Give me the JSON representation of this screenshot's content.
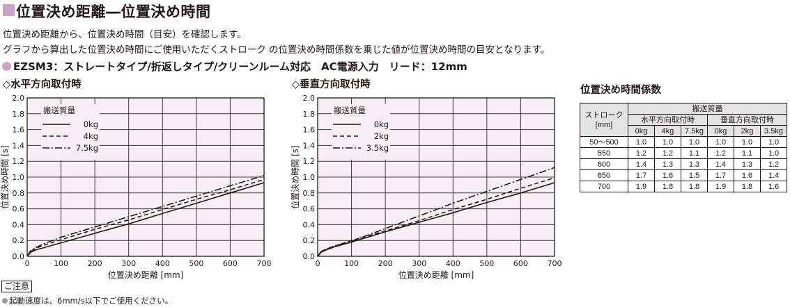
{
  "header": {
    "title": "位置決め距離―位置決め時間",
    "desc1": "位置決め距離から、位置決め時間（目安）を確認します。",
    "desc2": "グラフから算出した位置決め時間にご使用いただくストローク の位置決め時間係数を乗じた値が位置決め時間の目安となります。",
    "model_code": "EZSM3",
    "model_rest": "：ストレートタイプ/折返しタイプ/クリーンルーム対応　AC電源入力　リード：12mm"
  },
  "chart_data": [
    {
      "type": "line",
      "caption": "◇水平方向取付時",
      "xlabel": "位置決め距離 [mm]",
      "ylabel": "位置決め時間 [s]",
      "xlim": [
        0,
        700
      ],
      "ylim": [
        0,
        2.0
      ],
      "xticks": [
        0,
        100,
        200,
        300,
        400,
        500,
        600,
        700
      ],
      "yticks": [
        0,
        0.2,
        0.4,
        0.6,
        0.8,
        1.0,
        1.2,
        1.4,
        1.6,
        1.8,
        2.0
      ],
      "grid": true,
      "legend_title": "搬送質量",
      "legend_position": "top-left",
      "series": [
        {
          "name": "0kg",
          "dash": "solid",
          "x": [
            0,
            10,
            25,
            50,
            100,
            200,
            300,
            400,
            500,
            600,
            700
          ],
          "y": [
            0,
            0.05,
            0.08,
            0.11,
            0.17,
            0.29,
            0.41,
            0.54,
            0.67,
            0.8,
            0.93
          ]
        },
        {
          "name": "4kg",
          "dash": "dashed",
          "x": [
            0,
            10,
            25,
            50,
            100,
            200,
            300,
            400,
            500,
            600,
            700
          ],
          "y": [
            0,
            0.06,
            0.1,
            0.14,
            0.21,
            0.34,
            0.46,
            0.59,
            0.72,
            0.84,
            0.97
          ]
        },
        {
          "name": "7.5kg",
          "dash": "dashdot",
          "x": [
            0,
            10,
            25,
            50,
            100,
            200,
            300,
            400,
            500,
            600,
            700
          ],
          "y": [
            0,
            0.07,
            0.11,
            0.16,
            0.24,
            0.37,
            0.5,
            0.63,
            0.76,
            0.89,
            1.02
          ]
        }
      ]
    },
    {
      "type": "line",
      "caption": "◇垂直方向取付時",
      "xlabel": "位置決め距離 [mm]",
      "ylabel": "位置決め時間 [s]",
      "xlim": [
        0,
        700
      ],
      "ylim": [
        0,
        2.0
      ],
      "xticks": [
        0,
        100,
        200,
        300,
        400,
        500,
        600,
        700
      ],
      "yticks": [
        0,
        0.2,
        0.4,
        0.6,
        0.8,
        1.0,
        1.2,
        1.4,
        1.6,
        1.8,
        2.0
      ],
      "grid": true,
      "legend_title": "搬送質量",
      "legend_position": "top-left",
      "series": [
        {
          "name": "0kg",
          "dash": "solid",
          "x": [
            0,
            10,
            25,
            50,
            100,
            200,
            300,
            400,
            500,
            600,
            700
          ],
          "y": [
            0,
            0.05,
            0.08,
            0.12,
            0.18,
            0.31,
            0.43,
            0.55,
            0.68,
            0.8,
            0.93
          ]
        },
        {
          "name": "2kg",
          "dash": "dashed",
          "x": [
            0,
            10,
            25,
            50,
            100,
            200,
            300,
            400,
            500,
            600,
            700
          ],
          "y": [
            0,
            0.06,
            0.09,
            0.13,
            0.2,
            0.32,
            0.45,
            0.59,
            0.72,
            0.86,
            0.99
          ]
        },
        {
          "name": "3.5kg",
          "dash": "dashdot",
          "x": [
            0,
            10,
            25,
            50,
            100,
            200,
            300,
            400,
            500,
            600,
            700
          ],
          "y": [
            0,
            0.06,
            0.09,
            0.13,
            0.19,
            0.35,
            0.51,
            0.67,
            0.82,
            0.97,
            1.12
          ]
        }
      ]
    },
    {
      "type": "table",
      "caption": "位置決め時間係数",
      "stroke_header": [
        "ストローク",
        "[mm]"
      ],
      "mass_header": "搬送質量",
      "groups": [
        "水平方向取付時",
        "垂直方向取付時"
      ],
      "columns": [
        "0kg",
        "4kg",
        "7.5kg",
        "0kg",
        "2kg",
        "3.5kg"
      ],
      "rows": [
        {
          "stroke": "50～500",
          "values": [
            "1.0",
            "1.0",
            "1.0",
            "1.0",
            "1.0",
            "1.0"
          ]
        },
        {
          "stroke": "550",
          "values": [
            "1.2",
            "1.2",
            "1.1",
            "1.2",
            "1.1",
            "1.0"
          ]
        },
        {
          "stroke": "600",
          "values": [
            "1.4",
            "1.3",
            "1.3",
            "1.4",
            "1.3",
            "1.2"
          ]
        },
        {
          "stroke": "650",
          "values": [
            "1.7",
            "1.6",
            "1.5",
            "1.7",
            "1.6",
            "1.4"
          ]
        },
        {
          "stroke": "700",
          "values": [
            "1.9",
            "1.8",
            "1.8",
            "1.9",
            "1.8",
            "1.6"
          ]
        }
      ]
    }
  ],
  "notice": {
    "label": "ご注意",
    "text": "起動速度は、6mm/s以下でご使用ください。"
  },
  "colors": {
    "accent": "#c9a3c8",
    "plot_background": "#f7eef5",
    "table_header": "#e3e3e3"
  }
}
